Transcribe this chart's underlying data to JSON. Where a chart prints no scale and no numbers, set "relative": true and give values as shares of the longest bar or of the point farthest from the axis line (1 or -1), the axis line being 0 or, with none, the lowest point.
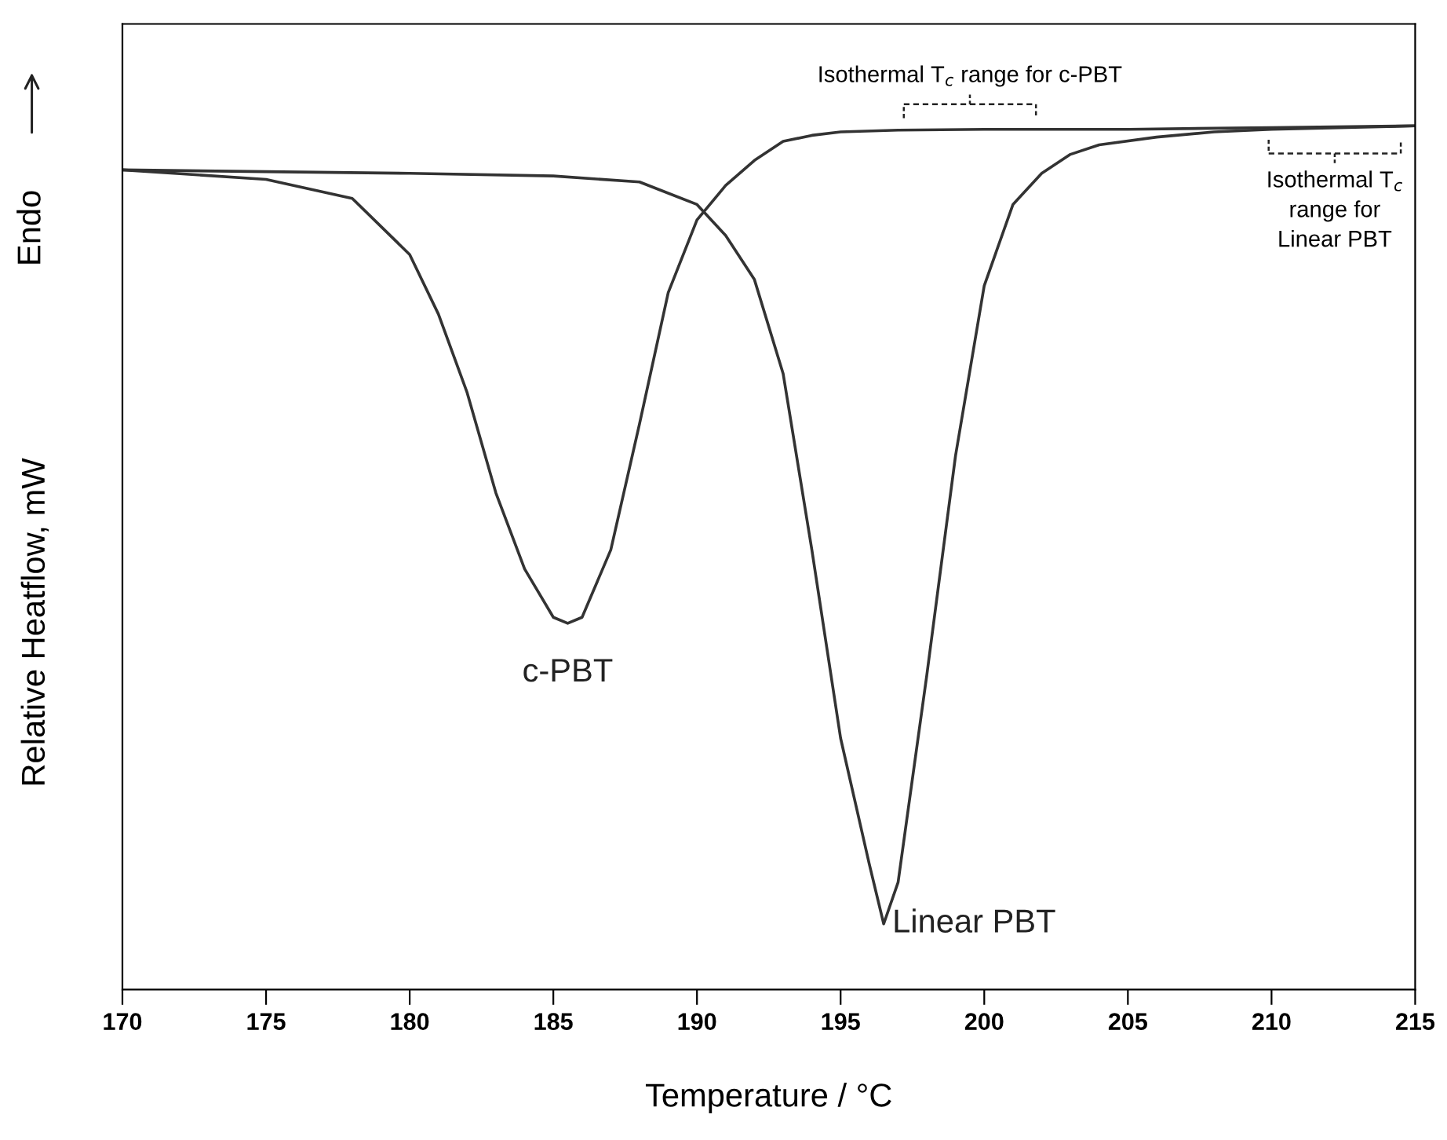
{
  "chart_data": {
    "type": "line",
    "relative": true,
    "xlabel": "Temperature / °C",
    "ylabel": "Relative Heatflow, mW",
    "xlim": [
      170,
      215
    ],
    "xticks": [
      170,
      175,
      180,
      185,
      190,
      195,
      200,
      205,
      210,
      215
    ],
    "grid": false,
    "legend": false,
    "marker": "none",
    "line_style": "solid",
    "series": [
      {
        "name": "c-PBT",
        "color": "#333333",
        "x": [
          170,
          175,
          178,
          180,
          181,
          182,
          183,
          184,
          185,
          185.5,
          186,
          187,
          188,
          189,
          190,
          191,
          192,
          193,
          194,
          195,
          197,
          200,
          205,
          210,
          215
        ],
        "values": [
          0.949,
          0.938,
          0.916,
          0.851,
          0.782,
          0.691,
          0.575,
          0.487,
          0.431,
          0.424,
          0.431,
          0.509,
          0.655,
          0.807,
          0.891,
          0.931,
          0.96,
          0.982,
          0.989,
          0.993,
          0.995,
          0.996,
          0.996,
          0.998,
          1.0
        ]
      },
      {
        "name": "Linear PBT",
        "color": "#333333",
        "x": [
          170,
          175,
          180,
          185,
          188,
          190,
          191,
          192,
          193,
          194,
          195,
          196,
          196.5,
          197,
          198,
          199,
          200,
          201,
          202,
          203,
          204,
          206,
          208,
          210,
          215
        ],
        "values": [
          0.949,
          0.947,
          0.945,
          0.942,
          0.935,
          0.909,
          0.873,
          0.822,
          0.713,
          0.509,
          0.291,
          0.145,
          0.076,
          0.124,
          0.364,
          0.618,
          0.815,
          0.909,
          0.945,
          0.967,
          0.978,
          0.987,
          0.993,
          0.996,
          1.0
        ]
      }
    ],
    "annotations": [
      {
        "text": "Isothermal T$_{c}$ range for c-PBT",
        "x": 199.5,
        "y": 0.995
      },
      {
        "text": "Isothermal T$_{c}$\nrange for\nLinear PBT",
        "x": 212.2,
        "y": 0.998
      },
      "Endo"
    ]
  }
}
